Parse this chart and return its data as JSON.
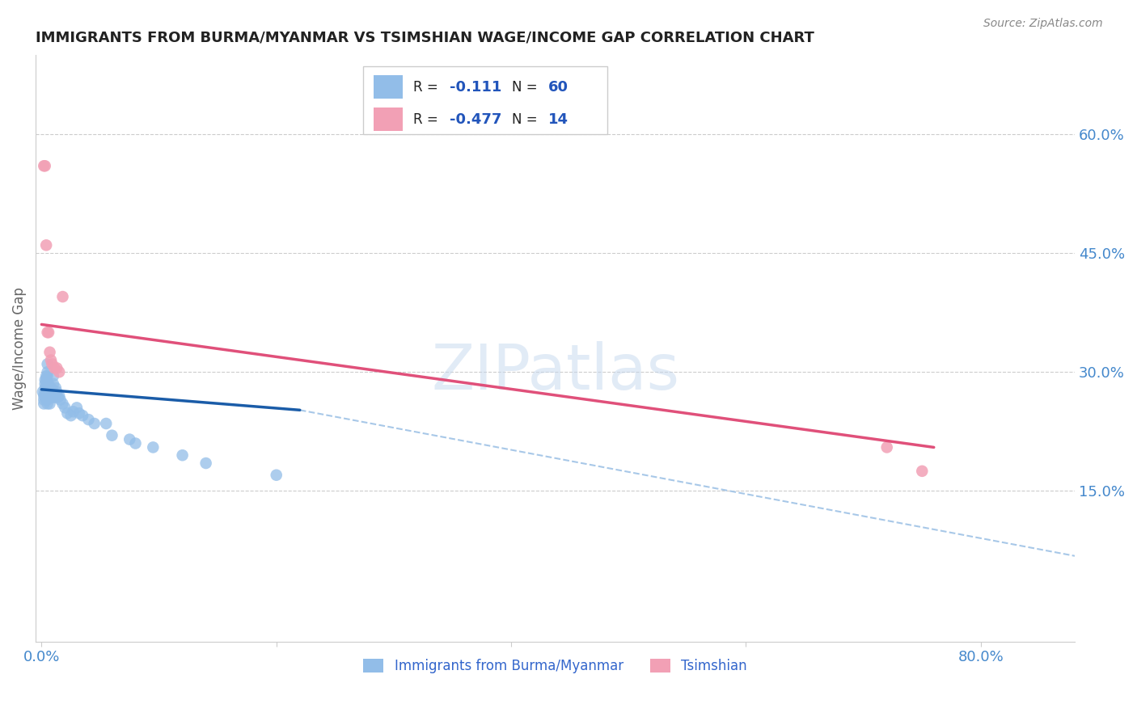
{
  "title": "IMMIGRANTS FROM BURMA/MYANMAR VS TSIMSHIAN WAGE/INCOME GAP CORRELATION CHART",
  "source": "Source: ZipAtlas.com",
  "ylabel": "Wage/Income Gap",
  "watermark": "ZIPatlas",
  "blue_color": "#92BDE8",
  "pink_color": "#F2A0B5",
  "blue_line_color": "#1A5CA8",
  "pink_line_color": "#E0507A",
  "dashed_line_color": "#A8C8E8",
  "y_ticks_right_pct": [
    0.15,
    0.3,
    0.45,
    0.6
  ],
  "y_tick_labels_right": [
    "15.0%",
    "30.0%",
    "45.0%",
    "60.0%"
  ],
  "xlim": [
    -0.005,
    0.88
  ],
  "ylim": [
    -0.04,
    0.7
  ],
  "blue_scatter_x": [
    0.001,
    0.002,
    0.002,
    0.002,
    0.003,
    0.003,
    0.003,
    0.003,
    0.003,
    0.004,
    0.004,
    0.004,
    0.004,
    0.004,
    0.005,
    0.005,
    0.005,
    0.005,
    0.005,
    0.005,
    0.005,
    0.005,
    0.006,
    0.006,
    0.006,
    0.007,
    0.007,
    0.007,
    0.008,
    0.008,
    0.009,
    0.009,
    0.01,
    0.01,
    0.01,
    0.011,
    0.012,
    0.012,
    0.013,
    0.014,
    0.015,
    0.016,
    0.018,
    0.02,
    0.022,
    0.025,
    0.027,
    0.03,
    0.032,
    0.035,
    0.04,
    0.045,
    0.055,
    0.06,
    0.075,
    0.08,
    0.095,
    0.12,
    0.14,
    0.2
  ],
  "blue_scatter_y": [
    0.275,
    0.27,
    0.265,
    0.26,
    0.29,
    0.285,
    0.28,
    0.275,
    0.27,
    0.295,
    0.29,
    0.28,
    0.275,
    0.265,
    0.31,
    0.3,
    0.295,
    0.285,
    0.28,
    0.275,
    0.265,
    0.26,
    0.285,
    0.278,
    0.27,
    0.275,
    0.268,
    0.26,
    0.28,
    0.272,
    0.278,
    0.268,
    0.295,
    0.285,
    0.275,
    0.268,
    0.28,
    0.27,
    0.275,
    0.268,
    0.27,
    0.265,
    0.26,
    0.255,
    0.248,
    0.245,
    0.25,
    0.255,
    0.248,
    0.245,
    0.24,
    0.235,
    0.235,
    0.22,
    0.215,
    0.21,
    0.205,
    0.195,
    0.185,
    0.17
  ],
  "pink_scatter_x": [
    0.002,
    0.003,
    0.004,
    0.005,
    0.006,
    0.007,
    0.008,
    0.009,
    0.011,
    0.013,
    0.015,
    0.018,
    0.72,
    0.75
  ],
  "pink_scatter_y": [
    0.56,
    0.56,
    0.46,
    0.35,
    0.35,
    0.325,
    0.315,
    0.31,
    0.305,
    0.305,
    0.3,
    0.395,
    0.205,
    0.175
  ],
  "blue_line_x": [
    0.0,
    0.22
  ],
  "blue_line_y": [
    0.278,
    0.252
  ],
  "pink_line_x": [
    0.0,
    0.76
  ],
  "pink_line_y": [
    0.36,
    0.205
  ],
  "dashed_line_x": [
    0.22,
    0.88
  ],
  "dashed_line_y": [
    0.252,
    0.068
  ]
}
